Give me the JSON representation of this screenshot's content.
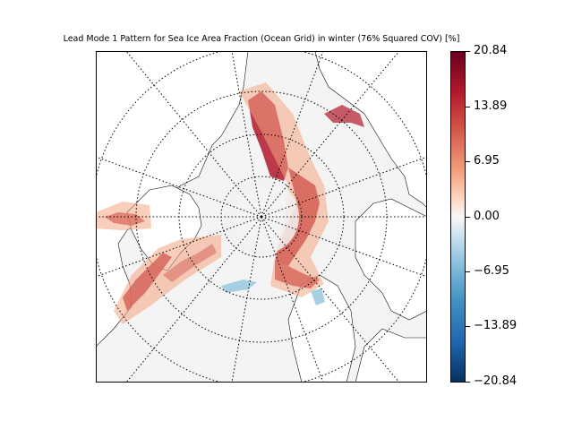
{
  "title": "Lead Mode 1 Pattern for Sea Ice Area Fraction (Ocean Grid) in winter (76% Squared COV) [%]",
  "colorbar": {
    "colormap": "RdBu_r",
    "range": [
      -20.84,
      20.84
    ],
    "tick_labels": [
      "20.84",
      "13.89",
      "6.95",
      "0.00",
      "−6.95",
      "−13.89",
      "−20.84"
    ],
    "tick_values": [
      20.84,
      13.89,
      6.95,
      0.0,
      -6.95,
      -13.89,
      -20.84
    ]
  },
  "map": {
    "projection": "north-polar-stereographic",
    "gridlines": "dotted",
    "background_color": "#f4f4f4",
    "coastline_color": "#000000",
    "positive_color": "#b2182b",
    "negative_color": "#4393c3"
  }
}
